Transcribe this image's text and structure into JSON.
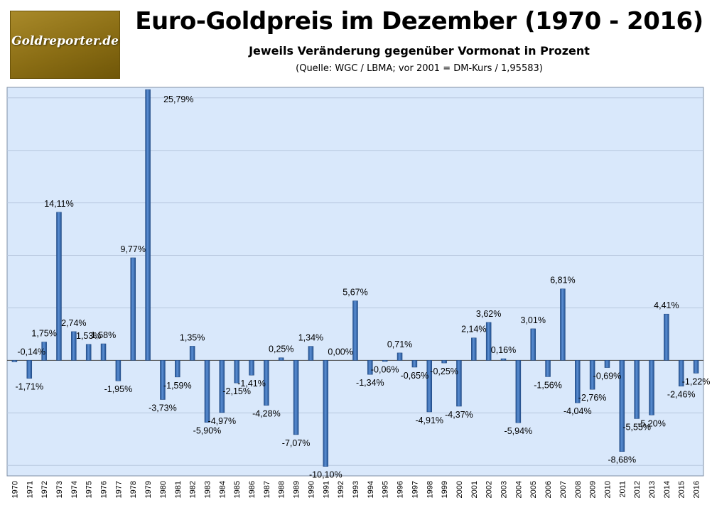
{
  "logo": {
    "text": "Goldreporter.de"
  },
  "header": {
    "title": "Euro-Goldpreis im Dezember (1970 - 2016)",
    "subtitle": "Jeweils Veränderung gegenüber Vormonat in Prozent",
    "source": "(Quelle: WGC / LBMA; vor 2001 = DM-Kurs / 1,95583)"
  },
  "chart_data": {
    "type": "bar",
    "categories": [
      "1970",
      "1971",
      "1972",
      "1973",
      "1974",
      "1975",
      "1976",
      "1977",
      "1978",
      "1979",
      "1980",
      "1981",
      "1982",
      "1983",
      "1984",
      "1985",
      "1986",
      "1987",
      "1988",
      "1989",
      "1990",
      "1991",
      "1992",
      "1993",
      "1994",
      "1995",
      "1996",
      "1997",
      "1998",
      "1999",
      "2000",
      "2001",
      "2002",
      "2003",
      "2004",
      "2005",
      "2006",
      "2007",
      "2008",
      "2009",
      "2010",
      "2011",
      "2012",
      "2013",
      "2014",
      "2015",
      "2016"
    ],
    "values": [
      -0.14,
      -1.71,
      1.75,
      14.11,
      2.74,
      1.53,
      1.58,
      -1.95,
      9.77,
      25.79,
      -3.73,
      -1.59,
      1.35,
      -5.9,
      -4.97,
      -2.15,
      -1.41,
      -4.28,
      0.25,
      -7.07,
      1.34,
      -10.1,
      0.0,
      5.67,
      -1.34,
      -0.06,
      0.71,
      -0.65,
      -4.91,
      -0.25,
      -4.37,
      2.14,
      3.62,
      0.16,
      -5.94,
      3.01,
      -1.56,
      6.81,
      -4.04,
      -2.76,
      -0.69,
      -8.68,
      -5.55,
      -5.2,
      4.41,
      -2.46,
      -1.22
    ],
    "data_labels": [
      "-0,14%",
      "-1,71%",
      "1,75%",
      "14,11%",
      "2,74%",
      "1,53%",
      "1,58%",
      "-1,95%",
      "9,77%",
      "25,79%",
      "-3,73%",
      "-1,59%",
      "1,35%",
      "-5,90%",
      "-4,97%",
      "-2,15%",
      "-1,41%",
      "-4,28%",
      "0,25%",
      "-7,07%",
      "1,34%",
      "-10,10%",
      "0,00%",
      "5,67%",
      "-1,34%",
      "-0,06%",
      "0,71%",
      "-0,65%",
      "-4,91%",
      "-0,25%",
      "-4,37%",
      "2,14%",
      "3,62%",
      "0,16%",
      "-5,94%",
      "3,01%",
      "-1,56%",
      "6,81%",
      "-4,04%",
      "-2,76%",
      "-0,69%",
      "-8,68%",
      "-5,55%",
      "-5,20%",
      "4,41%",
      "-2,46%",
      "-1,22%"
    ],
    "ylim": [
      -11,
      26
    ],
    "grid": true,
    "bar_color": "#3d6fb5",
    "plot_bg": "#d9e8fb",
    "xlabel": "",
    "ylabel": ""
  }
}
